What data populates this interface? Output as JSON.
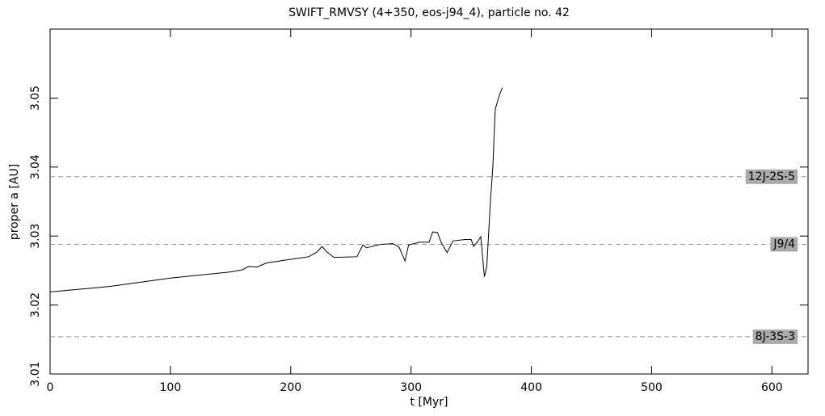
{
  "chart_data": {
    "type": "line",
    "title": "SWIFT_RMVSY (4+350, eos-j94_4), particle no. 42",
    "x_label": "t [Myr]",
    "y_label": "proper a [AU]",
    "x": [
      0,
      50,
      100,
      150,
      160,
      165,
      172,
      180,
      195,
      215,
      222,
      226,
      230,
      236,
      255,
      260,
      263,
      275,
      285,
      290,
      295,
      298,
      307,
      315,
      318,
      322,
      325,
      330,
      335,
      345,
      350,
      352,
      355,
      358,
      361,
      363,
      366,
      368,
      370,
      374,
      376
    ],
    "series": [
      {
        "name": "proper a",
        "color": "#000000",
        "values": [
          3.0219,
          3.0227,
          3.0239,
          3.0248,
          3.0251,
          3.0256,
          3.0255,
          3.0261,
          3.0265,
          3.027,
          3.0277,
          3.0285,
          3.0277,
          3.0269,
          3.027,
          3.0287,
          3.0283,
          3.0288,
          3.0289,
          3.0284,
          3.0264,
          3.0287,
          3.0291,
          3.0291,
          3.0306,
          3.0305,
          3.0291,
          3.0276,
          3.0293,
          3.0295,
          3.0295,
          3.0285,
          3.0291,
          3.0299,
          3.0241,
          3.0256,
          3.035,
          3.04,
          3.0484,
          3.0507,
          3.0515
        ]
      }
    ],
    "resonances": [
      {
        "label": "12J-2S-5",
        "value": 3.0386
      },
      {
        "label": "J9/4",
        "value": 3.0288
      },
      {
        "label": "8J-3S-3",
        "value": 3.0154
      }
    ],
    "xlim": [
      0,
      630
    ],
    "ylim": [
      3.01,
      3.06
    ],
    "xticks": [
      0,
      100,
      200,
      300,
      400,
      500,
      600
    ],
    "yticks": [
      3.01,
      3.02,
      3.03,
      3.04,
      3.05
    ]
  }
}
